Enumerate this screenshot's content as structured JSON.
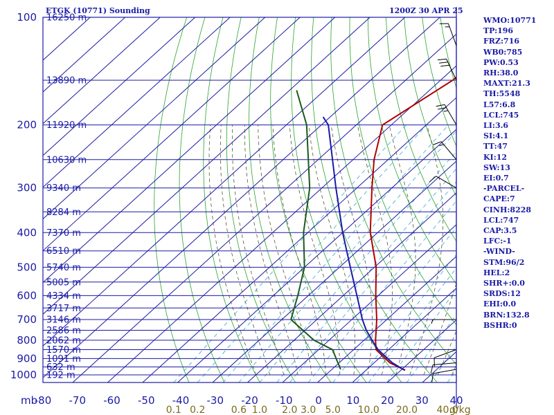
{
  "header": {
    "station": "ETGK (10771) Sounding",
    "time": "1200Z 30 APR 25"
  },
  "indices": [
    "WMO:10771",
    "TP:196",
    "FRZ:716",
    "WB0:785",
    "PW:0.53",
    "RH:38.0",
    "MAXT:21.3",
    "TH:5548",
    "L57:6.8",
    "LCL:745",
    "LI:3.6",
    "SI:4.1",
    "TT:47",
    "KI:12",
    "SW:13",
    "EI:0.7",
    "-PARCEL-",
    "CAPE:7",
    "CINH:8228",
    "LCL:747",
    "CAP:3.5",
    "LFC:-1",
    "-WIND-",
    "STM:96/2",
    "HEL:2",
    "SHR+:0.0",
    "SRDS:12",
    "EHI:0.0",
    "BRN:132.8",
    "BSHR:0"
  ],
  "colors": {
    "background": "#ffffff",
    "isobar_isotherm": "#1a1aa6",
    "dry_adiabat": "#2aa32a",
    "moist_adiabat": "#555533",
    "mixing_ratio": "#33aacc",
    "temperature": "#b00000",
    "dewpoint": "#1a5a1a",
    "parcel": "#1a1aa6",
    "wind_barb": "#000000",
    "mixing_ratio_label": "#7a6a1a"
  },
  "chart_data": {
    "type": "skew-t",
    "title": "ETGK (10771) Sounding",
    "y_axis_unit": "mb",
    "x_axis_unit": "°C",
    "mixing_ratio_unit": "g/kg",
    "pressure_levels": [
      100,
      200,
      300,
      400,
      500,
      600,
      700,
      800,
      900,
      1000
    ],
    "pressure_tick_labels": [
      "100",
      "200",
      "300",
      "400",
      "500",
      "600",
      "700",
      "800",
      "900",
      "1000"
    ],
    "temperature_ticks": [
      -80,
      -70,
      -60,
      -50,
      -40,
      -30,
      -20,
      -10,
      0,
      10,
      20,
      30,
      40
    ],
    "temperature_tick_labels": [
      "-80",
      "-70",
      "-60",
      "-50",
      "-40",
      "-30",
      "-20",
      "-10",
      "0",
      "10",
      "20",
      "30",
      "40"
    ],
    "mixing_ratio_ticks": [
      0.1,
      0.2,
      0.6,
      1.0,
      2.0,
      3.0,
      5.0,
      10.0,
      20.0,
      40.0
    ],
    "mixing_ratio_tick_labels": [
      "0.1",
      "0.2",
      "0.6",
      "1.0",
      "2.0",
      "3.0",
      "5.0",
      "10.0",
      "20.0",
      "40.0"
    ],
    "height_labels": [
      {
        "p": 100,
        "label": "16250 m"
      },
      {
        "p": 150,
        "label": "13890 m"
      },
      {
        "p": 200,
        "label": "11920 m"
      },
      {
        "p": 250,
        "label": "10630 m"
      },
      {
        "p": 300,
        "label": "9340 m"
      },
      {
        "p": 350,
        "label": "8284 m"
      },
      {
        "p": 400,
        "label": "7370 m"
      },
      {
        "p": 450,
        "label": "6510 m"
      },
      {
        "p": 500,
        "label": "5740 m"
      },
      {
        "p": 550,
        "label": "5005 m"
      },
      {
        "p": 600,
        "label": "4334 m"
      },
      {
        "p": 650,
        "label": "3717 m"
      },
      {
        "p": 700,
        "label": "3146 m"
      },
      {
        "p": 750,
        "label": "2586 m"
      },
      {
        "p": 800,
        "label": "2062 m"
      },
      {
        "p": 850,
        "label": "1570 m"
      },
      {
        "p": 900,
        "label": "1091 m"
      },
      {
        "p": 950,
        "label": "632 m"
      },
      {
        "p": 1000,
        "label": "192 m"
      }
    ],
    "series": [
      {
        "name": "temperature",
        "points": [
          {
            "p": 970,
            "t": 21.2
          },
          {
            "p": 925,
            "t": 14.5
          },
          {
            "p": 850,
            "t": 6.4
          },
          {
            "p": 800,
            "t": 3.3
          },
          {
            "p": 700,
            "t": -2.9
          },
          {
            "p": 600,
            "t": -10.7
          },
          {
            "p": 500,
            "t": -19.5
          },
          {
            "p": 400,
            "t": -32.1
          },
          {
            "p": 300,
            "t": -45.7
          },
          {
            "p": 250,
            "t": -54.0
          },
          {
            "p": 200,
            "t": -62.5
          },
          {
            "p": 150,
            "t": -56.5
          },
          {
            "p": 100,
            "t": -55.0
          }
        ]
      },
      {
        "name": "dewpoint",
        "points": [
          {
            "p": 965,
            "t": 2.5
          },
          {
            "p": 900,
            "t": -2.2
          },
          {
            "p": 850,
            "t": -6.0
          },
          {
            "p": 800,
            "t": -14.3
          },
          {
            "p": 700,
            "t": -27.4
          },
          {
            "p": 600,
            "t": -33.0
          },
          {
            "p": 500,
            "t": -40.0
          },
          {
            "p": 400,
            "t": -51.2
          },
          {
            "p": 300,
            "t": -63.5
          },
          {
            "p": 200,
            "t": -84.2
          },
          {
            "p": 160,
            "t": -98.0
          }
        ]
      },
      {
        "name": "parcel",
        "points": [
          {
            "p": 970,
            "t": 21.0
          },
          {
            "p": 925,
            "t": 15.2
          },
          {
            "p": 850,
            "t": 7.0
          },
          {
            "p": 800,
            "t": 2.3
          },
          {
            "p": 750,
            "t": -2.5
          },
          {
            "p": 700,
            "t": -7.0
          },
          {
            "p": 600,
            "t": -16.1
          },
          {
            "p": 500,
            "t": -26.9
          },
          {
            "p": 400,
            "t": -40.0
          },
          {
            "p": 300,
            "t": -56.0
          },
          {
            "p": 200,
            "t": -78.0
          },
          {
            "p": 190,
            "t": -82.0
          }
        ]
      }
    ],
    "wind_barbs": [
      {
        "p": 965,
        "dir": 260,
        "kt": 10
      },
      {
        "p": 925,
        "dir": 265,
        "kt": 10
      },
      {
        "p": 850,
        "dir": 250,
        "kt": 10
      },
      {
        "p": 700,
        "dir": 270,
        "kt": 5
      },
      {
        "p": 300,
        "dir": 300,
        "kt": 10
      },
      {
        "p": 250,
        "dir": 320,
        "kt": 15
      },
      {
        "p": 200,
        "dir": 330,
        "kt": 25
      },
      {
        "p": 150,
        "dir": 335,
        "kt": 30
      },
      {
        "p": 120,
        "dir": 340,
        "kt": 15
      }
    ]
  }
}
